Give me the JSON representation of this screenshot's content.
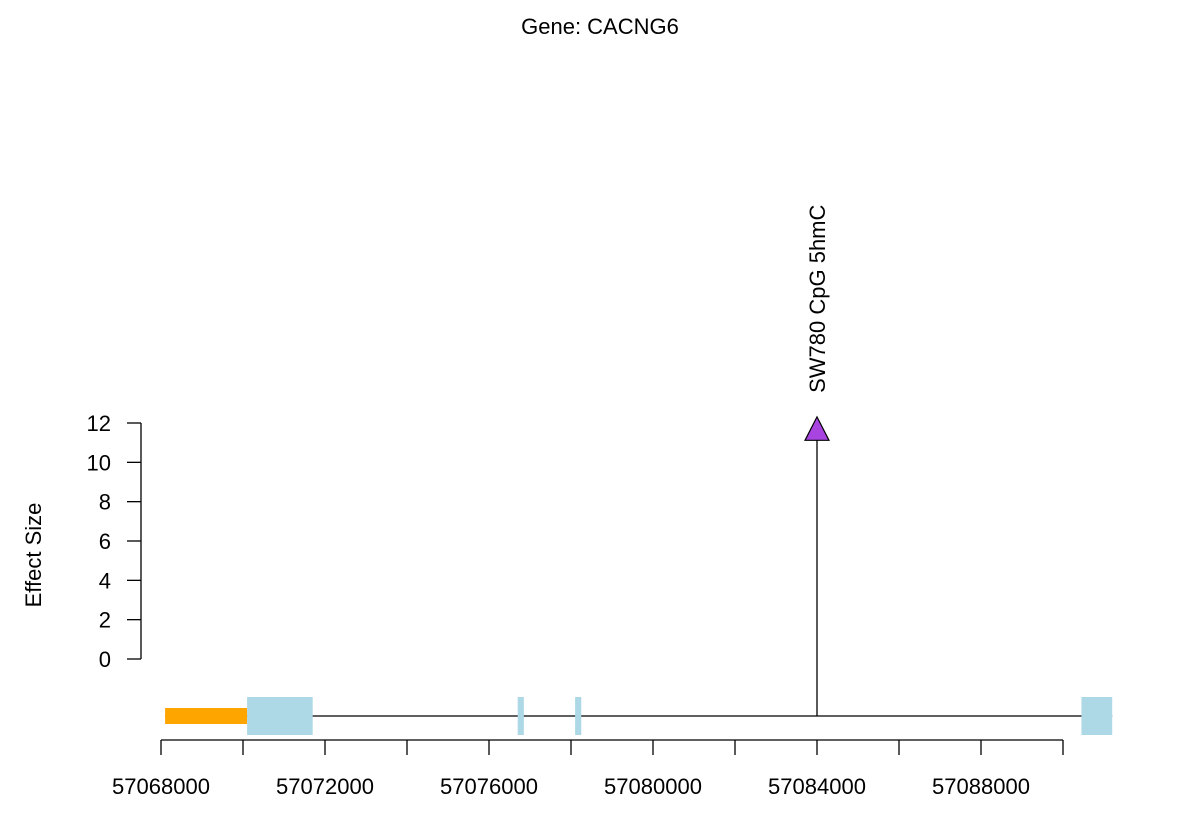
{
  "chart_data": {
    "type": "lollipop",
    "title": "Gene: CACNG6",
    "ylabel": "Effect Size",
    "ylim": [
      0,
      12
    ],
    "yticks": [
      "0",
      "2",
      "4",
      "6",
      "8",
      "10",
      "12"
    ],
    "xlim": [
      57068000,
      57090000
    ],
    "xticks": [
      57068000,
      57070000,
      57072000,
      57074000,
      57076000,
      57078000,
      57080000,
      57082000,
      57084000,
      57086000,
      57088000,
      57090000
    ],
    "xtick_labels": [
      "57068000",
      "57072000",
      "57076000",
      "57080000",
      "57084000",
      "57088000"
    ],
    "points": [
      {
        "position": 57084000,
        "value": 11.7,
        "label": "SW780 CpG 5hmC",
        "shape": "triangle",
        "color": "#A845E0"
      }
    ],
    "gene_model": {
      "line_start": 57068100,
      "line_end": 57091200,
      "utr": [
        {
          "start": 57068100,
          "end": 57070100,
          "color": "#FFA500"
        }
      ],
      "exons": [
        {
          "start": 57070100,
          "end": 57071700,
          "color": "#ADD8E6"
        },
        {
          "start": 57076700,
          "end": 57076850,
          "color": "#ADD8E6"
        },
        {
          "start": 57078100,
          "end": 57078250,
          "color": "#ADD8E6"
        },
        {
          "start": 57090450,
          "end": 57091200,
          "color": "#ADD8E6"
        }
      ]
    }
  }
}
